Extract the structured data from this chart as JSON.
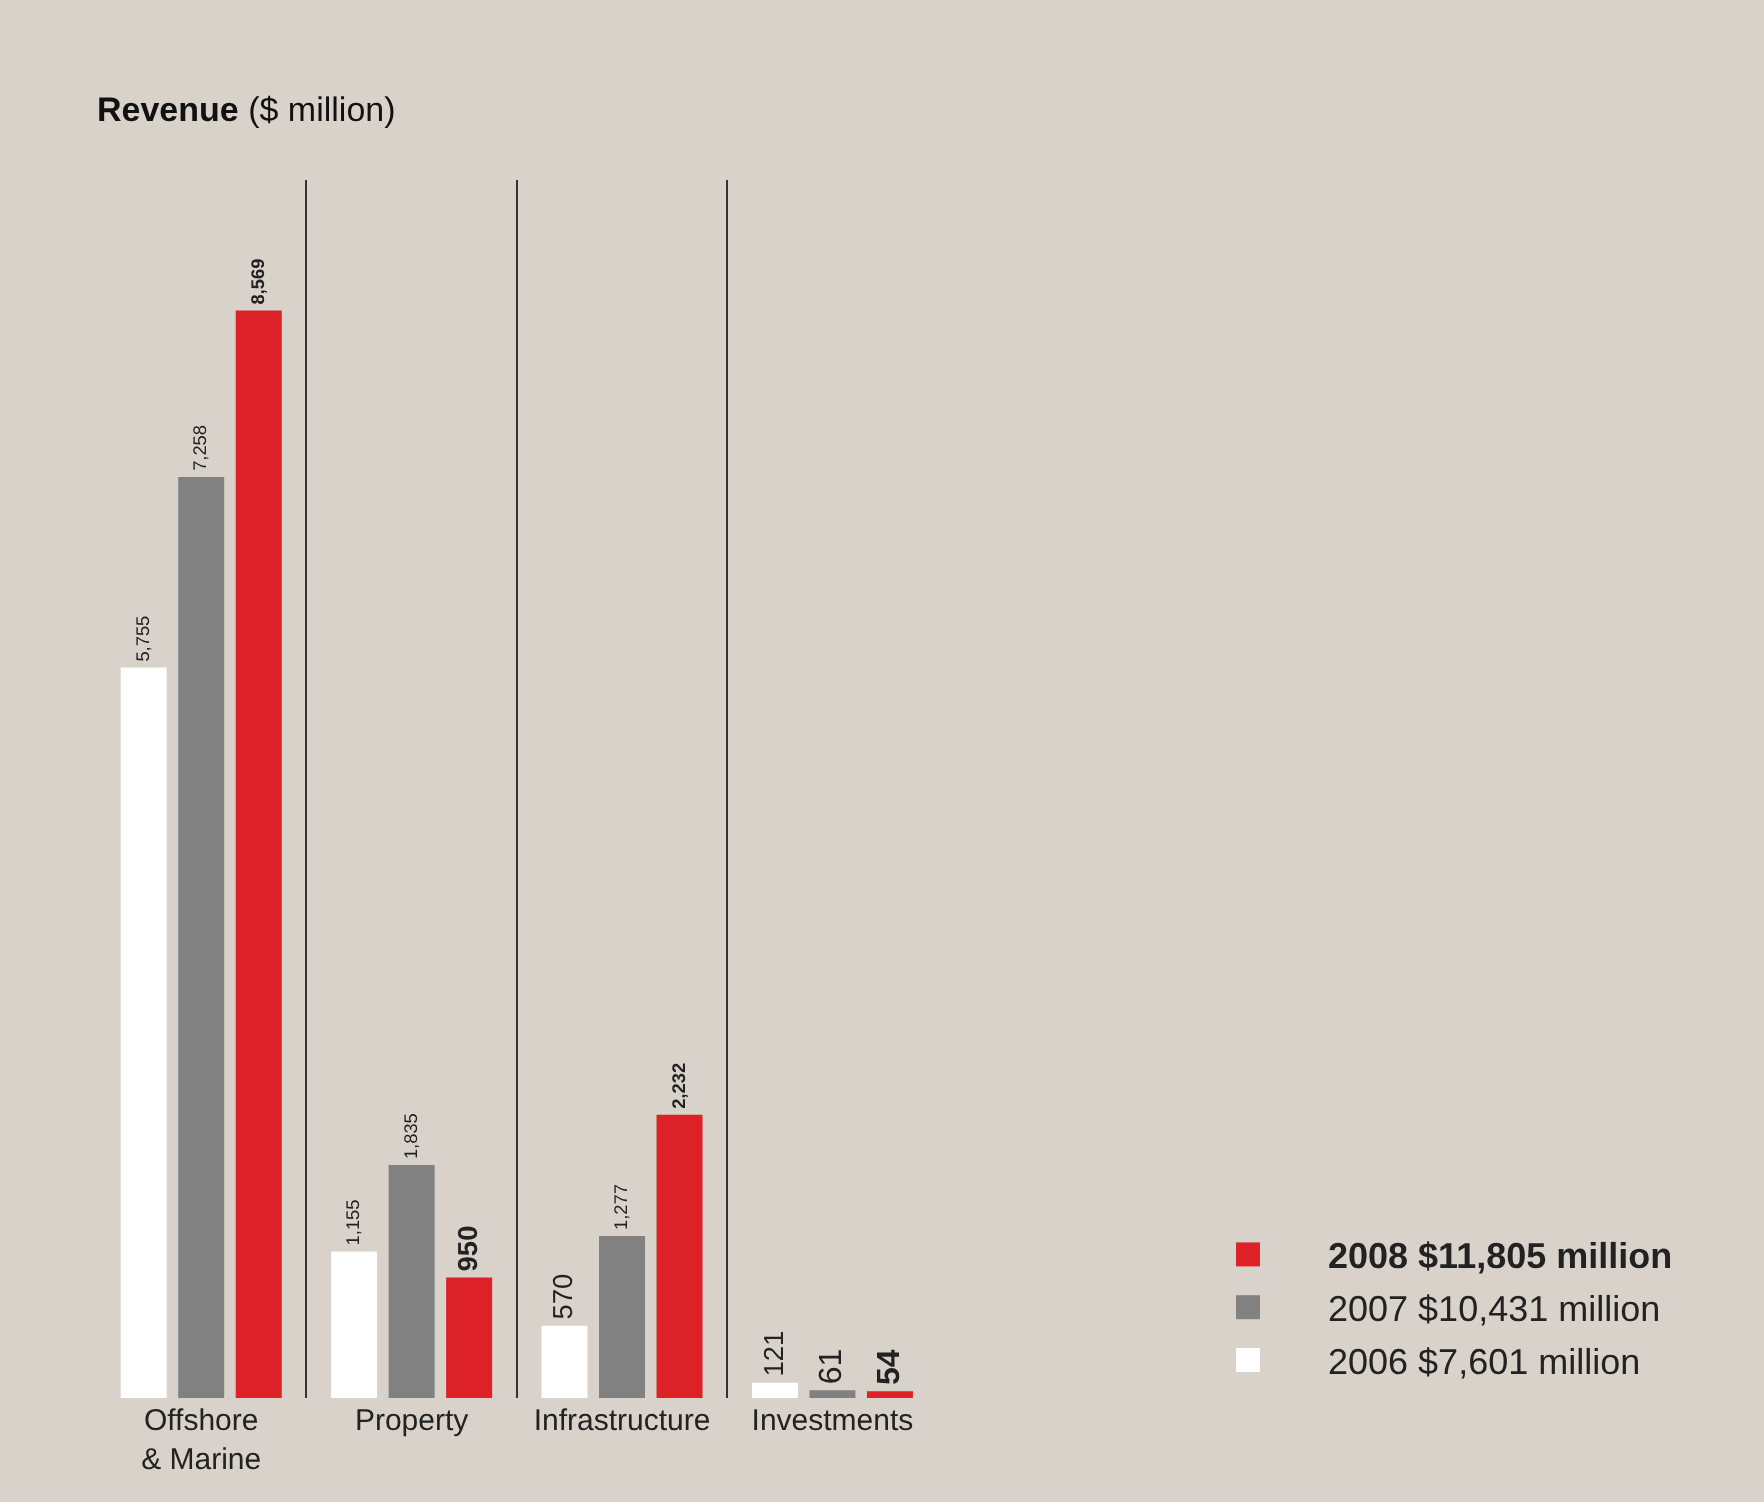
{
  "chart_data": {
    "type": "bar",
    "title": "Revenue ($ million)",
    "categories": [
      "Offshore\n& Marine",
      "Property",
      "Infrastructure",
      "Investments"
    ],
    "series": [
      {
        "name": "2006 $7,601 million",
        "color": "#ffffff",
        "values": [
          5755,
          1155,
          570,
          121
        ],
        "value_labels": [
          "5,755",
          "1,155",
          "570",
          "121"
        ]
      },
      {
        "name": "2007 $10,431 million",
        "color": "#818181",
        "values": [
          7258,
          1835,
          1277,
          61
        ],
        "value_labels": [
          "7,258",
          "1,835",
          "1,277",
          "61"
        ]
      },
      {
        "name": "2008 $11,805 million",
        "color": "#dc2128",
        "values": [
          8569,
          950,
          2232,
          54
        ],
        "value_labels": [
          "8,569",
          "950",
          "2,232",
          "54"
        ]
      }
    ],
    "grid": "x",
    "legend": "bottom right"
  }
}
